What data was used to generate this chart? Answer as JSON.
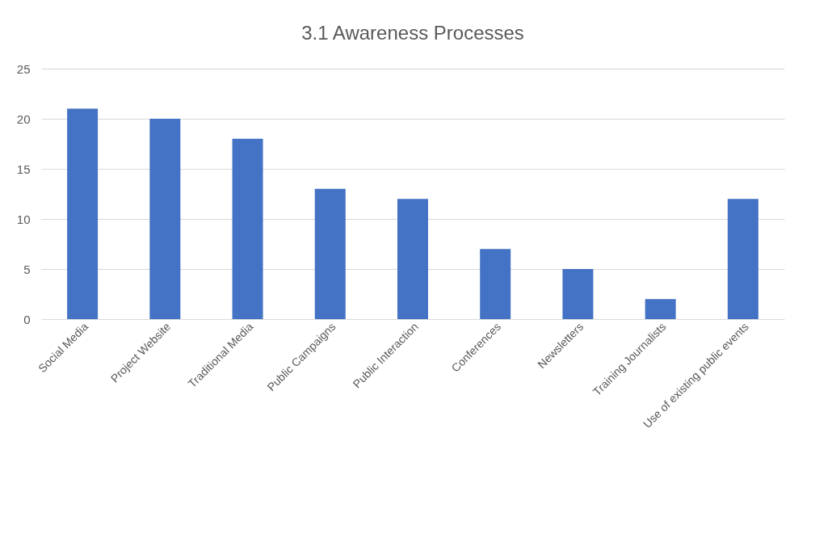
{
  "chart_data": {
    "type": "bar",
    "title": "3.1 Awareness Processes",
    "categories": [
      "Social Media",
      "Project Website",
      "Traditional Media",
      "Public Campaigns",
      "Public Interaction",
      "Conferences",
      "Newsletters",
      "Training Journalists",
      "Use of existing public events"
    ],
    "values": [
      21,
      20,
      18,
      13,
      12,
      7,
      5,
      2,
      12
    ],
    "color": "#4472c4",
    "ylim": [
      0,
      25
    ],
    "yticks": [
      0,
      5,
      10,
      15,
      20,
      25
    ],
    "grid": "y"
  }
}
